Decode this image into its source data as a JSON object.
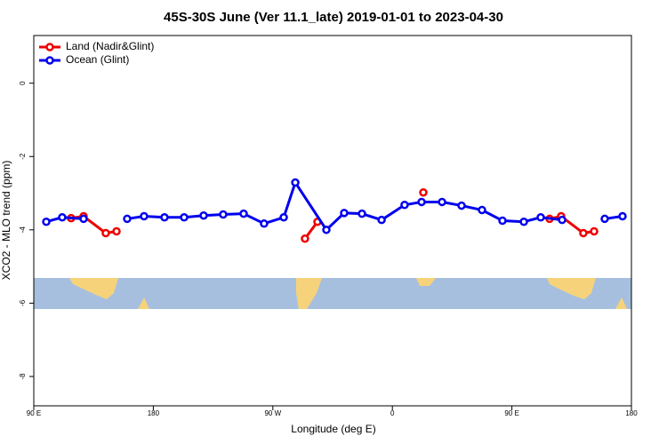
{
  "chart_data": {
    "type": "line",
    "title": "45S-30S June (Ver 11.1_late)   2019-01-01 to 2023-04-30",
    "xlabel": "Longitude (deg E)",
    "ylabel": "XCO2 - MLO trend (ppm)",
    "xlim": [
      90,
      540
    ],
    "xticks": [
      {
        "value": 90,
        "label": "90 E"
      },
      180,
      {
        "value": 270,
        "label": "90 W"
      },
      {
        "value": 360,
        "label": "0"
      },
      {
        "value": 450,
        "label": "90 E"
      },
      180
    ],
    "ylim": [
      -8.8,
      1.3
    ],
    "yticks": [
      0,
      -2,
      -4,
      -6,
      -8
    ],
    "legend": "top-left",
    "series": [
      {
        "name": "Land (Nadir&Glint)",
        "color": "#ee0000",
        "x": [
          118.1,
          127.5,
          144.2,
          152.3,
          null,
          294.2,
          303.6,
          null,
          383.3,
          null,
          478.4,
          487.1,
          503.8,
          511.9
        ],
        "values": [
          -3.68,
          -3.63,
          -4.09,
          -4.04,
          null,
          -4.24,
          -3.78,
          null,
          -2.98,
          null,
          -3.7,
          -3.63,
          -4.09,
          -4.04
        ]
      },
      {
        "name": "Ocean (Glint)",
        "color": "#0000ee",
        "x": [
          99.4,
          111.4,
          127.5,
          null,
          160.3,
          173.0,
          188.4,
          203.2,
          217.9,
          232.6,
          248.0,
          263.4,
          278.2,
          286.9,
          310.3,
          323.7,
          337.1,
          351.9,
          369.2,
          382.0,
          397.4,
          412.1,
          427.5,
          442.9,
          459.0,
          471.7,
          487.8,
          null,
          519.9,
          533.3
        ],
        "values": [
          -3.78,
          -3.66,
          -3.7,
          null,
          -3.7,
          -3.63,
          -3.66,
          -3.66,
          -3.61,
          -3.58,
          -3.56,
          -3.83,
          -3.66,
          -2.71,
          -4.0,
          -3.54,
          -3.56,
          -3.73,
          -3.32,
          -3.24,
          -3.24,
          -3.34,
          -3.46,
          -3.75,
          -3.78,
          -3.66,
          -3.73,
          null,
          -3.7,
          -3.63
        ]
      }
    ]
  }
}
